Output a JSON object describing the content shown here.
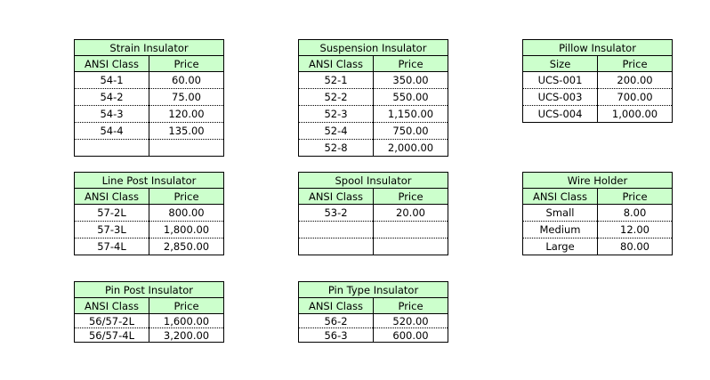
{
  "tables": [
    {
      "title": "Strain Insulator",
      "headers": [
        "ANSI Class",
        "Price"
      ],
      "rows": [
        [
          "54-1",
          "60.00"
        ],
        [
          "54-2",
          "75.00"
        ],
        [
          "54-3",
          "120.00"
        ],
        [
          "54-4",
          "135.00"
        ],
        [
          "",
          ""
        ]
      ]
    },
    {
      "title": "Suspension Insulator",
      "headers": [
        "ANSI Class",
        "Price"
      ],
      "rows": [
        [
          "52-1",
          "350.00"
        ],
        [
          "52-2",
          "550.00"
        ],
        [
          "52-3",
          "1,150.00"
        ],
        [
          "52-4",
          "750.00"
        ],
        [
          "52-8",
          "2,000.00"
        ]
      ]
    },
    {
      "title": "Pillow Insulator",
      "headers": [
        "Size",
        "Price"
      ],
      "rows": [
        [
          "UCS-001",
          "200.00"
        ],
        [
          "UCS-003",
          "700.00"
        ],
        [
          "UCS-004",
          "1,000.00"
        ]
      ]
    },
    {
      "title": "Line Post Insulator",
      "headers": [
        "ANSI Class",
        "Price"
      ],
      "rows": [
        [
          "57-2L",
          "800.00"
        ],
        [
          "57-3L",
          "1,800.00"
        ],
        [
          "57-4L",
          "2,850.00"
        ]
      ]
    },
    {
      "title": "Spool Insulator",
      "headers": [
        "ANSI Class",
        "Price"
      ],
      "rows": [
        [
          "53-2",
          "20.00"
        ],
        [
          "",
          ""
        ],
        [
          "",
          ""
        ]
      ]
    },
    {
      "title": "Wire Holder",
      "headers": [
        "ANSI Class",
        "Price"
      ],
      "rows": [
        [
          "Small",
          "8.00"
        ],
        [
          "Medium",
          "12.00"
        ],
        [
          "Large",
          "80.00"
        ]
      ]
    },
    {
      "title": "Pin Post Insulator",
      "headers": [
        "ANSI Class",
        "Price"
      ],
      "rows": [
        [
          "56/57-2L",
          "1,600.00"
        ],
        [
          "56/57-4L",
          "3,200.00"
        ]
      ]
    },
    {
      "title": "Pin Type Insulator",
      "headers": [
        "ANSI Class",
        "Price"
      ],
      "rows": [
        [
          "56-2",
          "520.00"
        ],
        [
          "56-3",
          "600.00"
        ]
      ]
    }
  ]
}
